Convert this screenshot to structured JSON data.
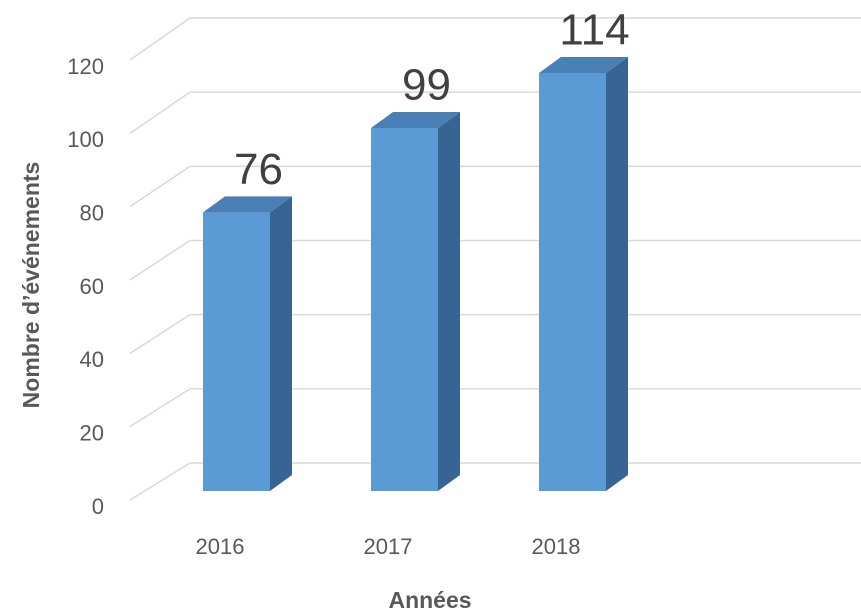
{
  "chart_data": {
    "type": "bar3d",
    "categories": [
      "2016",
      "2017",
      "2018"
    ],
    "values": [
      76,
      99,
      114
    ],
    "color": "#5b9bd5",
    "ylim": [
      0,
      120
    ],
    "yticks": [
      0,
      20,
      40,
      60,
      80,
      100,
      120
    ],
    "grid": true,
    "xlabel": "Années",
    "ylabel": "Nombre d’événements"
  }
}
